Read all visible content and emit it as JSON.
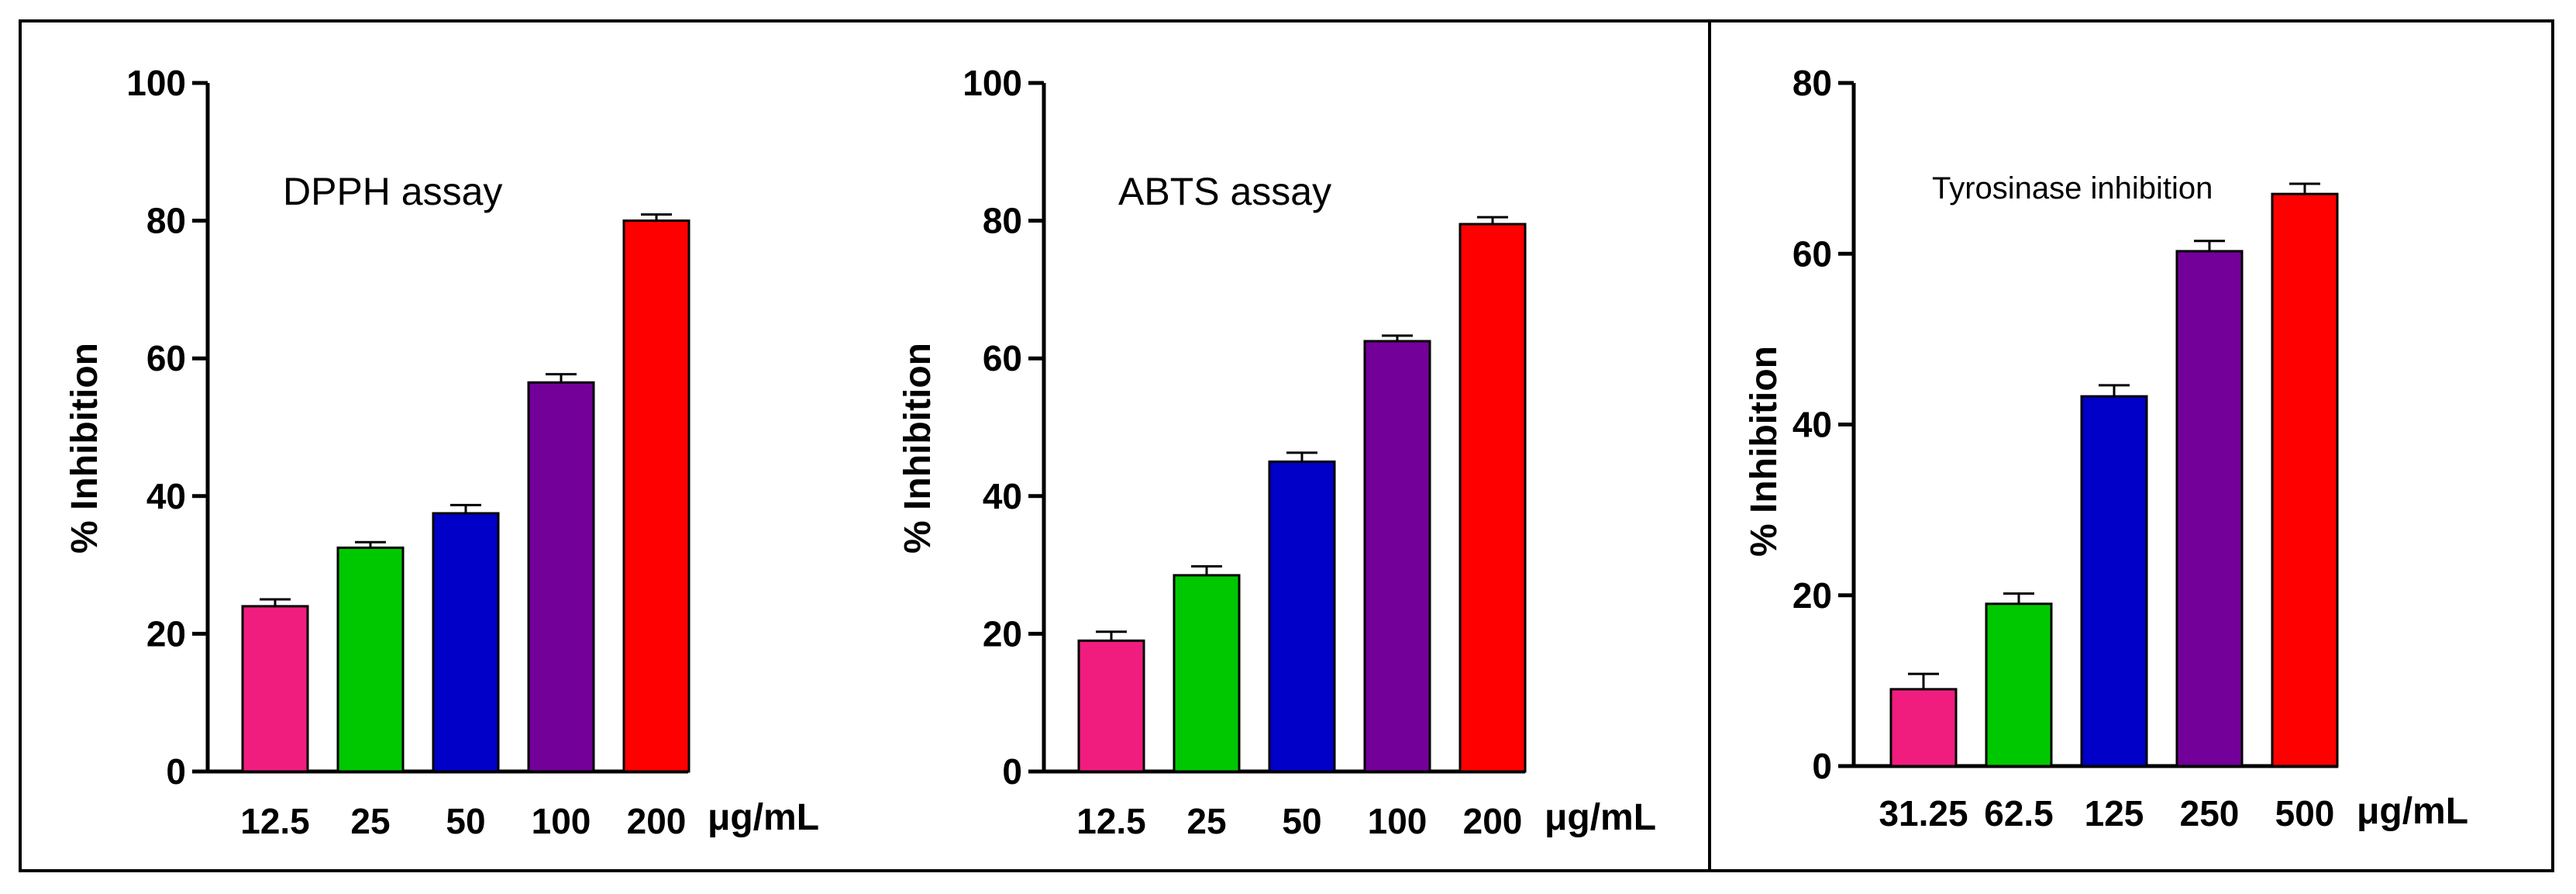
{
  "chart_data": [
    {
      "type": "bar",
      "title": "DPPH assay",
      "xlabel": "",
      "ylabel": "% Inhibition",
      "unit": "μg/mL",
      "categories": [
        "12.5",
        "25",
        "50",
        "100",
        "200"
      ],
      "values": [
        24,
        32.5,
        37.5,
        56.5,
        80
      ],
      "errors": [
        1,
        0.8,
        1.2,
        1.2,
        0.9
      ],
      "colors": [
        "#f01d7f",
        "#00c800",
        "#0000c8",
        "#730099",
        "#ff0000"
      ],
      "ylim": [
        0,
        100
      ],
      "yticks": [
        0,
        20,
        40,
        60,
        80,
        100
      ]
    },
    {
      "type": "bar",
      "title": "ABTS assay",
      "xlabel": "",
      "ylabel": "% Inhibition",
      "unit": "μg/mL",
      "categories": [
        "12.5",
        "25",
        "50",
        "100",
        "200"
      ],
      "values": [
        19,
        28.5,
        45,
        62.5,
        79.5
      ],
      "errors": [
        1.3,
        1.3,
        1.3,
        0.8,
        1
      ],
      "colors": [
        "#f01d7f",
        "#00c800",
        "#0000c8",
        "#730099",
        "#ff0000"
      ],
      "ylim": [
        0,
        100
      ],
      "yticks": [
        0,
        20,
        40,
        60,
        80,
        100
      ]
    },
    {
      "type": "bar",
      "title": "Tyrosinase inhibition",
      "xlabel": "",
      "ylabel": "% Inhibition",
      "unit": "μg/mL",
      "categories": [
        "31.25",
        "62.5",
        "125",
        "250",
        "500"
      ],
      "values": [
        9,
        19,
        43.3,
        60.3,
        67
      ],
      "errors": [
        1.8,
        1.2,
        1.3,
        1.2,
        1.2
      ],
      "colors": [
        "#f01d7f",
        "#00c800",
        "#0000c8",
        "#730099",
        "#ff0000"
      ],
      "ylim": [
        0,
        80
      ],
      "yticks": [
        0,
        20,
        40,
        60,
        80
      ]
    }
  ]
}
